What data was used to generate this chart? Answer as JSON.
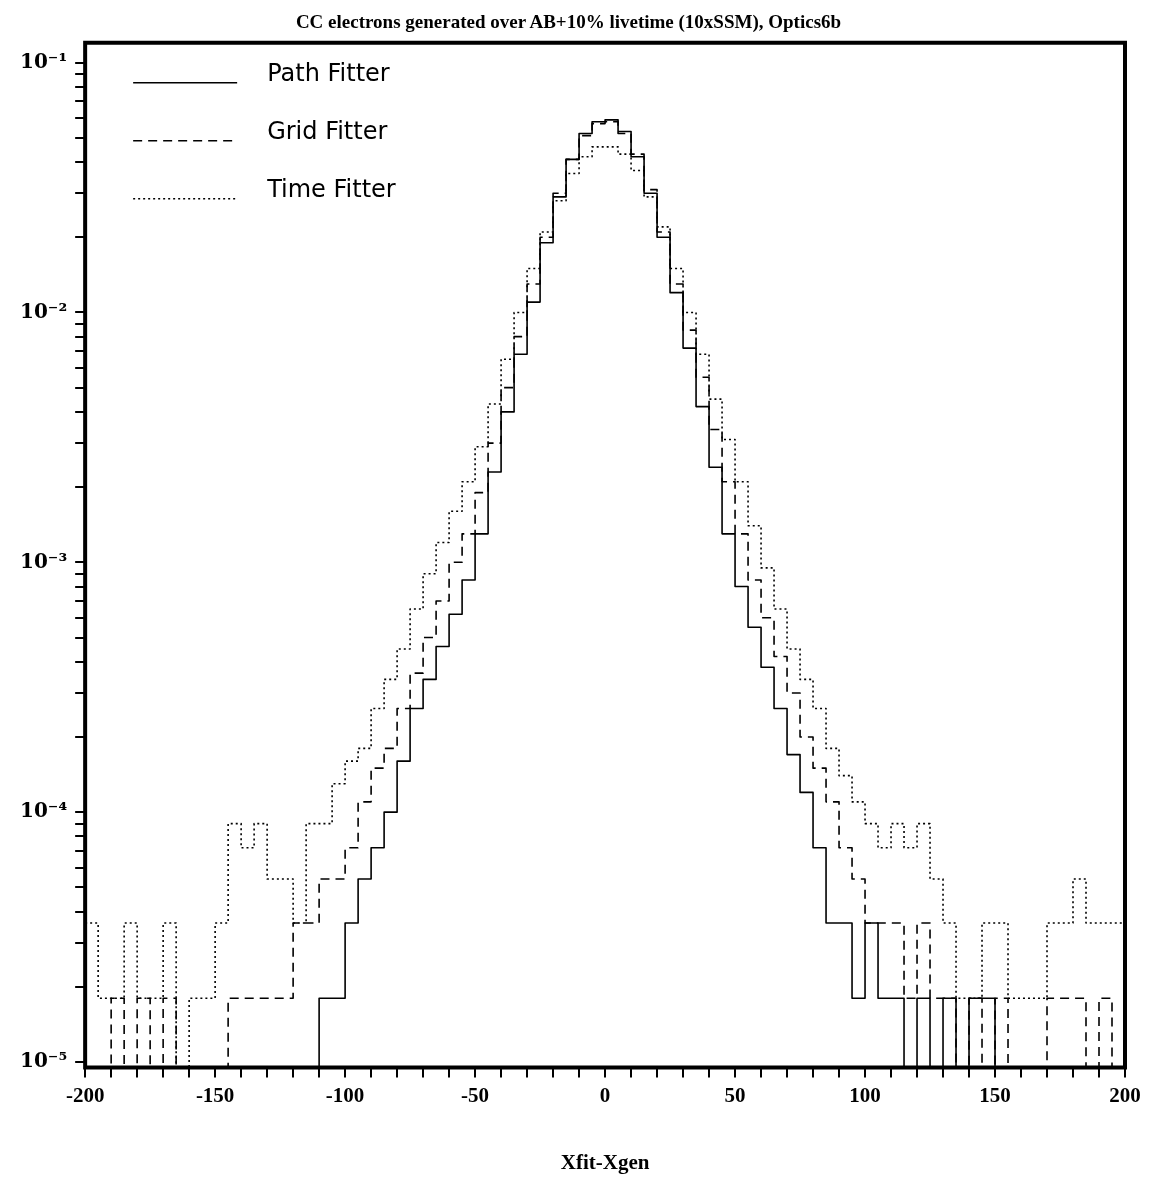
{
  "chart_data": {
    "type": "histogram",
    "title": "CC electrons generated over AB+10% livetime (10xSSM), Optics6b",
    "xlabel": "Xfit-Xgen",
    "log": "y",
    "legend": "top left",
    "bins": [
      -200,
      -195,
      -190,
      -185,
      -180,
      -175,
      -170,
      -165,
      -160,
      -155,
      -150,
      -145,
      -140,
      -135,
      -130,
      -125,
      -120,
      -115,
      -110,
      -105,
      -100,
      -95,
      -90,
      -85,
      -80,
      -75,
      -70,
      -65,
      -60,
      -55,
      -50,
      -45,
      -40,
      -35,
      -30,
      -25,
      -20,
      -15,
      -10,
      -5,
      0,
      5,
      10,
      15,
      20,
      25,
      30,
      35,
      40,
      45,
      50,
      55,
      60,
      65,
      70,
      75,
      80,
      85,
      90,
      95,
      100,
      105,
      110,
      115,
      120,
      125,
      130,
      135,
      140,
      145,
      150,
      155,
      160,
      165,
      170,
      175,
      180,
      185,
      190,
      195,
      200
    ],
    "series": [
      {
        "name": "Path Fitter",
        "color": "#000000",
        "line_style": "solid",
        "values": [
          null,
          null,
          null,
          null,
          null,
          null,
          null,
          null,
          null,
          null,
          null,
          null,
          null,
          null,
          null,
          null,
          null,
          null,
          1.8e-05,
          1.8e-05,
          3.6e-05,
          5.4e-05,
          7.2e-05,
          0.0001,
          0.00016,
          0.00026,
          0.00034,
          0.00046,
          0.00062,
          0.00085,
          0.0013,
          0.0023,
          0.004,
          0.0068,
          0.011,
          0.019,
          0.029,
          0.041,
          0.052,
          0.058,
          0.059,
          0.053,
          0.042,
          0.03,
          0.02,
          0.012,
          0.0072,
          0.0042,
          0.0024,
          0.0013,
          0.0008,
          0.00055,
          0.00038,
          0.00026,
          0.00017,
          0.00012,
          7.2e-05,
          3.6e-05,
          3.6e-05,
          1.8e-05,
          3.6e-05,
          1.8e-05,
          1.8e-05,
          null,
          1.8e-05,
          null,
          1.8e-05,
          null,
          1.8e-05,
          1.8e-05,
          null,
          null,
          null,
          null,
          null,
          null,
          null,
          null,
          null,
          null
        ]
      },
      {
        "name": "Grid Fitter",
        "color": "#000000",
        "line_style": "dashed",
        "values": [
          null,
          null,
          1.8e-05,
          null,
          1.8e-05,
          null,
          1.8e-05,
          null,
          null,
          null,
          null,
          1.8e-05,
          1.8e-05,
          1.8e-05,
          1.8e-05,
          1.8e-05,
          3.6e-05,
          3.6e-05,
          5.4e-05,
          5.4e-05,
          7.2e-05,
          0.00011,
          0.00015,
          0.00018,
          0.00026,
          0.00036,
          0.0005,
          0.0007,
          0.001,
          0.0013,
          0.0019,
          0.003,
          0.005,
          0.008,
          0.013,
          0.02,
          0.03,
          0.041,
          0.051,
          0.057,
          0.058,
          0.052,
          0.043,
          0.031,
          0.021,
          0.013,
          0.0085,
          0.0055,
          0.0034,
          0.0021,
          0.0013,
          0.00085,
          0.0006,
          0.00042,
          0.0003,
          0.0002,
          0.00015,
          0.00011,
          7.2e-05,
          5.4e-05,
          3.6e-05,
          3.6e-05,
          3.6e-05,
          1.8e-05,
          3.6e-05,
          1.8e-05,
          1.8e-05,
          null,
          1.8e-05,
          null,
          1.8e-05,
          null,
          null,
          null,
          1.8e-05,
          1.8e-05,
          1.8e-05,
          null,
          1.8e-05,
          null
        ]
      },
      {
        "name": "Time Fitter",
        "color": "#000000",
        "line_style": "dotted",
        "values": [
          3.6e-05,
          1.8e-05,
          1.8e-05,
          3.6e-05,
          1.8e-05,
          1.8e-05,
          3.6e-05,
          null,
          1.8e-05,
          1.8e-05,
          3.6e-05,
          9e-05,
          7.2e-05,
          9e-05,
          5.4e-05,
          5.4e-05,
          3.6e-05,
          9e-05,
          9e-05,
          0.00013,
          0.00016,
          0.00018,
          0.00026,
          0.00034,
          0.00045,
          0.00065,
          0.0009,
          0.0012,
          0.0016,
          0.0021,
          0.0029,
          0.0043,
          0.0065,
          0.01,
          0.015,
          0.021,
          0.028,
          0.036,
          0.042,
          0.046,
          0.046,
          0.043,
          0.037,
          0.029,
          0.022,
          0.015,
          0.01,
          0.0068,
          0.0045,
          0.0031,
          0.0021,
          0.0014,
          0.00095,
          0.00065,
          0.00045,
          0.00034,
          0.00026,
          0.00018,
          0.00014,
          0.00011,
          9e-05,
          7.2e-05,
          9e-05,
          7.2e-05,
          9e-05,
          5.4e-05,
          3.6e-05,
          1.8e-05,
          1.8e-05,
          3.6e-05,
          3.6e-05,
          1.8e-05,
          1.8e-05,
          1.8e-05,
          3.6e-05,
          3.6e-05,
          5.4e-05,
          3.6e-05,
          3.6e-05,
          3.6e-05
        ]
      }
    ],
    "xlim": [
      -200,
      200
    ],
    "xticks": [
      -200,
      {
        "value": -190,
        "label": null
      },
      {
        "value": -180,
        "label": null
      },
      {
        "value": -170,
        "label": null
      },
      {
        "value": -160,
        "label": null
      },
      -150,
      {
        "value": -140,
        "label": null
      },
      {
        "value": -130,
        "label": null
      },
      {
        "value": -120,
        "label": null
      },
      {
        "value": -110,
        "label": null
      },
      -100,
      {
        "value": -90,
        "label": null
      },
      {
        "value": -80,
        "label": null
      },
      {
        "value": -70,
        "label": null
      },
      {
        "value": -60,
        "label": null
      },
      -50,
      {
        "value": -40,
        "label": null
      },
      {
        "value": -30,
        "label": null
      },
      {
        "value": -20,
        "label": null
      },
      {
        "value": -10,
        "label": null
      },
      0,
      {
        "value": 10,
        "label": null
      },
      {
        "value": 20,
        "label": null
      },
      {
        "value": 30,
        "label": null
      },
      {
        "value": 40,
        "label": null
      },
      50,
      {
        "value": 60,
        "label": null
      },
      {
        "value": 70,
        "label": null
      },
      {
        "value": 80,
        "label": null
      },
      {
        "value": 90,
        "label": null
      },
      100,
      {
        "value": 110,
        "label": null
      },
      {
        "value": 120,
        "label": null
      },
      {
        "value": 130,
        "label": null
      },
      {
        "value": 140,
        "label": null
      },
      150,
      {
        "value": 160,
        "label": null
      },
      {
        "value": 170,
        "label": null
      },
      {
        "value": 180,
        "label": null
      },
      {
        "value": 190,
        "label": null
      },
      200
    ],
    "ylim": [
      9.5e-06,
      0.12
    ],
    "yticks": [
      {
        "value": 1e-05,
        "label": "10⁻⁵"
      },
      {
        "value": 2e-05,
        "label": null
      },
      {
        "value": 3e-05,
        "label": null
      },
      {
        "value": 4e-05,
        "label": null
      },
      {
        "value": 5e-05,
        "label": null
      },
      {
        "value": 6e-05,
        "label": null
      },
      {
        "value": 7e-05,
        "label": null
      },
      {
        "value": 8e-05,
        "label": null
      },
      {
        "value": 9e-05,
        "label": null
      },
      {
        "value": 0.0001,
        "label": "10⁻⁴"
      },
      {
        "value": 0.0002,
        "label": null
      },
      {
        "value": 0.0003,
        "label": null
      },
      {
        "value": 0.0004,
        "label": null
      },
      {
        "value": 0.0005,
        "label": null
      },
      {
        "value": 0.0006,
        "label": null
      },
      {
        "value": 0.0007,
        "label": null
      },
      {
        "value": 0.0008,
        "label": null
      },
      {
        "value": 0.0009,
        "label": null
      },
      {
        "value": 0.001,
        "label": "10⁻³"
      },
      {
        "value": 0.002,
        "label": null
      },
      {
        "value": 0.003,
        "label": null
      },
      {
        "value": 0.004,
        "label": null
      },
      {
        "value": 0.005,
        "label": null
      },
      {
        "value": 0.006,
        "label": null
      },
      {
        "value": 0.007,
        "label": null
      },
      {
        "value": 0.008,
        "label": null
      },
      {
        "value": 0.009,
        "label": null
      },
      {
        "value": 0.01,
        "label": "10⁻²"
      },
      {
        "value": 0.02,
        "label": null
      },
      {
        "value": 0.03,
        "label": null
      },
      {
        "value": 0.04,
        "label": null
      },
      {
        "value": 0.05,
        "label": null
      },
      {
        "value": 0.06,
        "label": null
      },
      {
        "value": 0.07,
        "label": null
      },
      {
        "value": 0.08,
        "label": null
      },
      {
        "value": 0.09,
        "label": null
      },
      {
        "value": 0.1,
        "label": "10⁻¹"
      }
    ]
  }
}
